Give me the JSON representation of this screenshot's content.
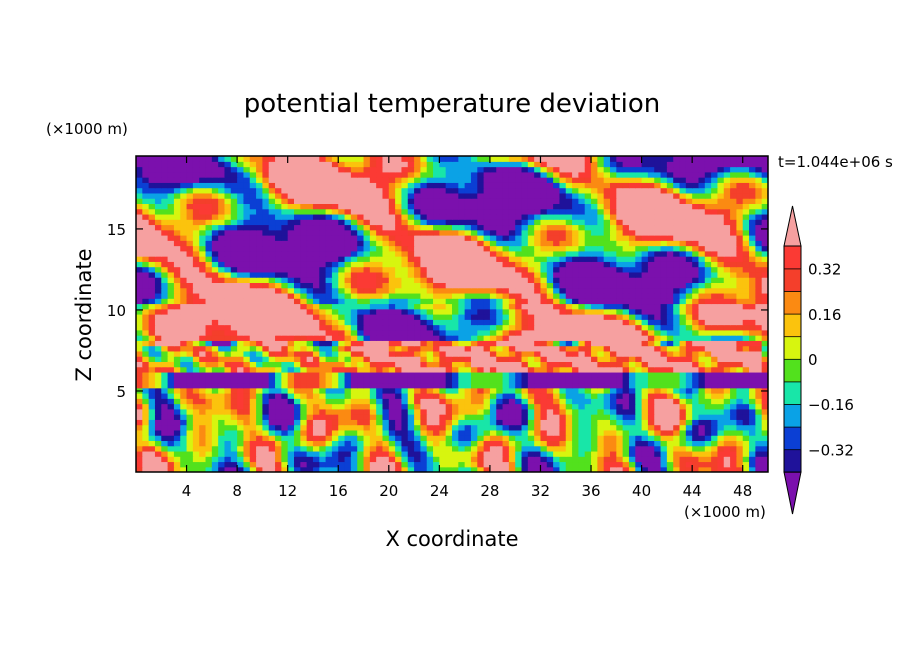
{
  "chart_data": {
    "type": "heatmap",
    "title": "potential temperature deviation",
    "xlabel": "X coordinate",
    "ylabel": "Z coordinate",
    "x_unit": "(×1000 m)",
    "y_unit": "(×1000 m)",
    "time_label": "t=1.044e+06 s",
    "xlim": [
      0,
      50
    ],
    "ylim": [
      0,
      19.5
    ],
    "x_ticks": [
      4,
      8,
      12,
      16,
      20,
      24,
      28,
      32,
      36,
      40,
      44,
      48
    ],
    "y_ticks": [
      5,
      10,
      15
    ],
    "colorbar": {
      "levels": [
        -0.4,
        -0.32,
        -0.24,
        -0.16,
        -0.08,
        0,
        0.08,
        0.16,
        0.24,
        0.32,
        0.4
      ],
      "tick_labels": [
        "0.32",
        "0.16",
        "0",
        "−0.16",
        "−0.32"
      ],
      "tick_values": [
        0.32,
        0.16,
        0,
        -0.16,
        -0.32
      ],
      "colors": [
        "#7b10ad",
        "#1f129a",
        "#0b3fd4",
        "#0aa2e6",
        "#18e6a8",
        "#52e11d",
        "#d7f50f",
        "#fbc30d",
        "#fb8a12",
        "#f43f2b",
        "#fb3a34",
        "#f6a0a0"
      ],
      "extend": "both"
    },
    "features": {
      "upper_layer": "alternating large patches of pink (> 0.40) and purple (< −0.40) above z ≈ 8",
      "stable_band": "red band (~0.32–0.40) near z ≈ 6.5–8",
      "lower_layer": "convective cells of mixed positive and negative values below z ≈ 5.5"
    }
  }
}
